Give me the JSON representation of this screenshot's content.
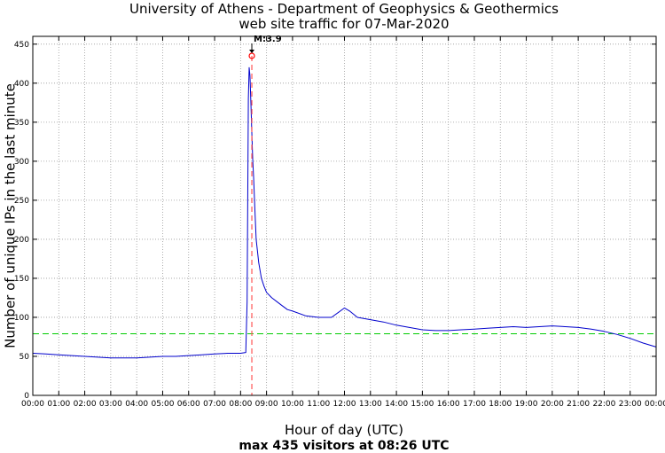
{
  "chart_data": {
    "type": "line",
    "title": "University of Athens - Department of Geophysics & Geothermics",
    "subtitle": "web site traffic for 07-Mar-2020",
    "xlabel": "Hour of day (UTC)",
    "xlabel_sub": "max 435 visitors at 08:26 UTC",
    "ylabel": "Number of unique IPs in the last minute",
    "xlim": [
      0,
      24
    ],
    "ylim": [
      0,
      460
    ],
    "yticks": [
      0,
      50,
      100,
      150,
      200,
      250,
      300,
      350,
      400,
      450
    ],
    "xtick_labels": [
      "00:00",
      "01:00",
      "02:00",
      "03:00",
      "04:00",
      "05:00",
      "06:00",
      "07:00",
      "08:00",
      "09:00",
      "10:00",
      "11:00",
      "12:00",
      "13:00",
      "14:00",
      "15:00",
      "16:00",
      "17:00",
      "18:00",
      "19:00",
      "20:00",
      "21:00",
      "22:00",
      "23:00",
      "00:00"
    ],
    "grid": true,
    "reference_line": {
      "y": 79,
      "color": "#00cc00",
      "style": "dashed"
    },
    "event_line": {
      "x": 8.4333,
      "color": "#ff5555",
      "style": "dashed"
    },
    "event_label": "M:3.9",
    "max_point": {
      "x": 8.4333,
      "y": 435
    },
    "series": [
      {
        "color": "#0000cc",
        "x": [
          0,
          0.5,
          1,
          1.5,
          2,
          2.5,
          3,
          3.5,
          4,
          4.5,
          5,
          5.5,
          6,
          6.5,
          7,
          7.5,
          8,
          8.2,
          8.25,
          8.3,
          8.33,
          8.36,
          8.4,
          8.43,
          8.47,
          8.5,
          8.55,
          8.6,
          8.7,
          8.8,
          8.9,
          9.0,
          9.2,
          9.4,
          9.6,
          9.8,
          10,
          10.5,
          11,
          11.5,
          12,
          12.2,
          12.5,
          13,
          13.5,
          14,
          14.5,
          15,
          15.5,
          16,
          16.5,
          17,
          17.5,
          18,
          18.5,
          19,
          19.5,
          20,
          20.5,
          21,
          21.5,
          22,
          22.5,
          23,
          23.5,
          24
        ],
        "y": [
          54,
          53,
          52,
          51,
          50,
          49,
          48,
          48,
          48,
          49,
          50,
          50,
          51,
          52,
          53,
          54,
          54,
          55,
          120,
          380,
          420,
          410,
          370,
          340,
          300,
          280,
          240,
          200,
          170,
          150,
          140,
          132,
          125,
          120,
          115,
          110,
          108,
          102,
          100,
          100,
          112,
          108,
          100,
          97,
          94,
          90,
          87,
          84,
          83,
          83,
          84,
          85,
          86,
          87,
          88,
          87,
          88,
          89,
          88,
          87,
          85,
          82,
          78,
          73,
          67,
          62
        ]
      }
    ]
  }
}
